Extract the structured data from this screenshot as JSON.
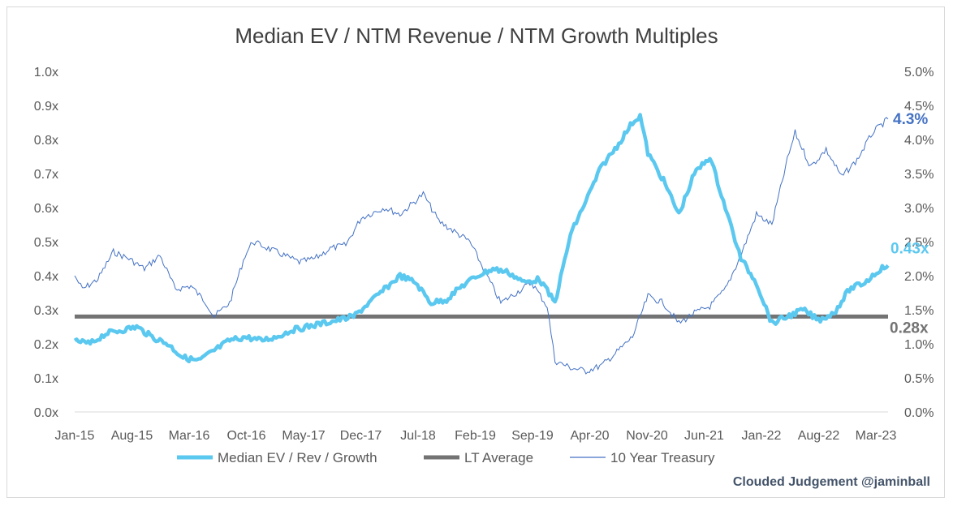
{
  "chart_data": {
    "type": "line",
    "title": "Median EV / NTM Revenue / NTM Growth Multiples",
    "x_tick_labels": [
      "Jan-15",
      "Aug-15",
      "Mar-16",
      "Oct-16",
      "May-17",
      "Dec-17",
      "Jul-18",
      "Feb-19",
      "Sep-19",
      "Apr-20",
      "Nov-20",
      "Jun-21",
      "Jan-22",
      "Aug-22",
      "Mar-23"
    ],
    "x_range": [
      "2015-01",
      "2023-10"
    ],
    "y_left": {
      "ticks": [
        "0.0x",
        "0.1x",
        "0.2x",
        "0.3x",
        "0.4x",
        "0.5x",
        "0.6x",
        "0.7x",
        "0.8x",
        "0.9x",
        "1.0x"
      ],
      "ylim": [
        0,
        1.0
      ]
    },
    "y_right": {
      "ticks": [
        "0.0%",
        "0.5%",
        "1.0%",
        "1.5%",
        "2.0%",
        "2.5%",
        "3.0%",
        "3.5%",
        "4.0%",
        "4.5%",
        "5.0%"
      ],
      "ylim": [
        0,
        5.0
      ]
    },
    "series": [
      {
        "name": "Median EV / Rev / Growth",
        "axis": "left",
        "color": "#5bc8f0",
        "end_label": "0.43x",
        "points": [
          [
            "2015-01",
            0.21
          ],
          [
            "2015-03",
            0.2
          ],
          [
            "2015-05",
            0.23
          ],
          [
            "2015-07",
            0.24
          ],
          [
            "2015-09",
            0.25
          ],
          [
            "2015-11",
            0.22
          ],
          [
            "2016-01",
            0.2
          ],
          [
            "2016-03",
            0.16
          ],
          [
            "2016-05",
            0.15
          ],
          [
            "2016-07",
            0.18
          ],
          [
            "2016-09",
            0.21
          ],
          [
            "2016-11",
            0.22
          ],
          [
            "2017-01",
            0.21
          ],
          [
            "2017-03",
            0.22
          ],
          [
            "2017-05",
            0.24
          ],
          [
            "2017-07",
            0.25
          ],
          [
            "2017-09",
            0.26
          ],
          [
            "2017-11",
            0.27
          ],
          [
            "2018-01",
            0.28
          ],
          [
            "2018-03",
            0.32
          ],
          [
            "2018-05",
            0.36
          ],
          [
            "2018-07",
            0.4
          ],
          [
            "2018-09",
            0.38
          ],
          [
            "2018-11",
            0.32
          ],
          [
            "2019-01",
            0.33
          ],
          [
            "2019-03",
            0.37
          ],
          [
            "2019-05",
            0.4
          ],
          [
            "2019-07",
            0.42
          ],
          [
            "2019-09",
            0.41
          ],
          [
            "2019-11",
            0.38
          ],
          [
            "2020-01",
            0.39
          ],
          [
            "2020-03",
            0.32
          ],
          [
            "2020-05",
            0.52
          ],
          [
            "2020-07",
            0.62
          ],
          [
            "2020-09",
            0.72
          ],
          [
            "2020-11",
            0.78
          ],
          [
            "2021-01",
            0.85
          ],
          [
            "2021-02",
            0.87
          ],
          [
            "2021-03",
            0.76
          ],
          [
            "2021-05",
            0.68
          ],
          [
            "2021-07",
            0.58
          ],
          [
            "2021-09",
            0.7
          ],
          [
            "2021-11",
            0.75
          ],
          [
            "2022-01",
            0.6
          ],
          [
            "2022-03",
            0.45
          ],
          [
            "2022-05",
            0.38
          ],
          [
            "2022-07",
            0.26
          ],
          [
            "2022-09",
            0.28
          ],
          [
            "2022-11",
            0.3
          ],
          [
            "2023-01",
            0.27
          ],
          [
            "2023-03",
            0.29
          ],
          [
            "2023-05",
            0.36
          ],
          [
            "2023-07",
            0.38
          ],
          [
            "2023-09",
            0.42
          ],
          [
            "2023-10",
            0.43
          ]
        ]
      },
      {
        "name": "LT Average",
        "axis": "left",
        "color": "#737373",
        "end_label": "0.28x",
        "points": [
          [
            "2015-01",
            0.28
          ],
          [
            "2023-10",
            0.28
          ]
        ]
      },
      {
        "name": "10 Year Treasury",
        "axis": "right",
        "color": "#4472c4",
        "end_label": "4.3%",
        "points": [
          [
            "2015-01",
            2.0
          ],
          [
            "2015-02",
            1.8
          ],
          [
            "2015-04",
            1.95
          ],
          [
            "2015-06",
            2.35
          ],
          [
            "2015-08",
            2.25
          ],
          [
            "2015-10",
            2.1
          ],
          [
            "2015-12",
            2.3
          ],
          [
            "2016-02",
            1.8
          ],
          [
            "2016-04",
            1.85
          ],
          [
            "2016-06",
            1.6
          ],
          [
            "2016-07",
            1.4
          ],
          [
            "2016-09",
            1.6
          ],
          [
            "2016-11",
            2.3
          ],
          [
            "2016-12",
            2.5
          ],
          [
            "2017-02",
            2.4
          ],
          [
            "2017-04",
            2.3
          ],
          [
            "2017-06",
            2.2
          ],
          [
            "2017-08",
            2.25
          ],
          [
            "2017-10",
            2.4
          ],
          [
            "2017-12",
            2.45
          ],
          [
            "2018-02",
            2.85
          ],
          [
            "2018-05",
            3.0
          ],
          [
            "2018-07",
            2.9
          ],
          [
            "2018-09",
            3.1
          ],
          [
            "2018-10",
            3.2
          ],
          [
            "2018-12",
            2.8
          ],
          [
            "2019-02",
            2.65
          ],
          [
            "2019-04",
            2.5
          ],
          [
            "2019-06",
            2.05
          ],
          [
            "2019-08",
            1.6
          ],
          [
            "2019-10",
            1.75
          ],
          [
            "2019-12",
            1.9
          ],
          [
            "2020-02",
            1.55
          ],
          [
            "2020-03",
            0.75
          ],
          [
            "2020-05",
            0.65
          ],
          [
            "2020-07",
            0.6
          ],
          [
            "2020-09",
            0.68
          ],
          [
            "2020-11",
            0.88
          ],
          [
            "2021-01",
            1.1
          ],
          [
            "2021-03",
            1.7
          ],
          [
            "2021-05",
            1.6
          ],
          [
            "2021-07",
            1.3
          ],
          [
            "2021-09",
            1.45
          ],
          [
            "2021-11",
            1.55
          ],
          [
            "2022-01",
            1.8
          ],
          [
            "2022-03",
            2.3
          ],
          [
            "2022-05",
            2.9
          ],
          [
            "2022-07",
            2.75
          ],
          [
            "2022-09",
            3.7
          ],
          [
            "2022-10",
            4.1
          ],
          [
            "2022-12",
            3.6
          ],
          [
            "2023-02",
            3.85
          ],
          [
            "2023-04",
            3.45
          ],
          [
            "2023-06",
            3.7
          ],
          [
            "2023-08",
            4.1
          ],
          [
            "2023-10",
            4.3
          ]
        ]
      }
    ],
    "legend": {
      "placement": "bottom"
    },
    "grid": false
  },
  "credit": "Clouded Judgement @jaminball"
}
